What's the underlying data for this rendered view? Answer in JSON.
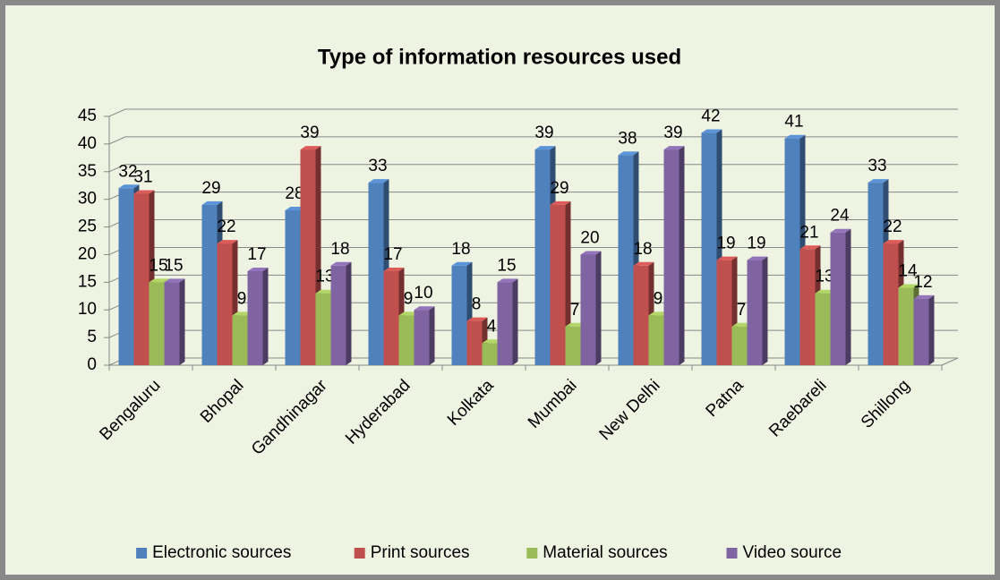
{
  "chart_data": {
    "type": "bar3d",
    "title": "Type of information resources used",
    "categories": [
      "Bengaluru",
      "Bhopal",
      "Gandhinagar",
      "Hyderabad",
      "Kolkata",
      "Mumbai",
      "New Delhi",
      "Patna",
      "Raebareli",
      "Shillong"
    ],
    "series": [
      {
        "name": "Electronic sources",
        "color": "#4f81bd",
        "values": [
          32,
          29,
          28,
          33,
          18,
          39,
          38,
          42,
          41,
          33
        ]
      },
      {
        "name": "Print sources",
        "color": "#c0504d",
        "values": [
          31,
          22,
          39,
          17,
          8,
          29,
          18,
          19,
          21,
          22
        ]
      },
      {
        "name": "Material sources",
        "color": "#9bbb59",
        "values": [
          15,
          9,
          13,
          9,
          4,
          7,
          9,
          7,
          13,
          14
        ]
      },
      {
        "name": "Video source",
        "color": "#8064a2",
        "values": [
          15,
          17,
          18,
          10,
          15,
          20,
          39,
          19,
          24,
          12
        ]
      }
    ],
    "ylim": [
      0,
      45
    ],
    "yticks": [
      0,
      5,
      10,
      15,
      20,
      25,
      30,
      35,
      40,
      45
    ],
    "grid": true,
    "legend": "bottom"
  }
}
